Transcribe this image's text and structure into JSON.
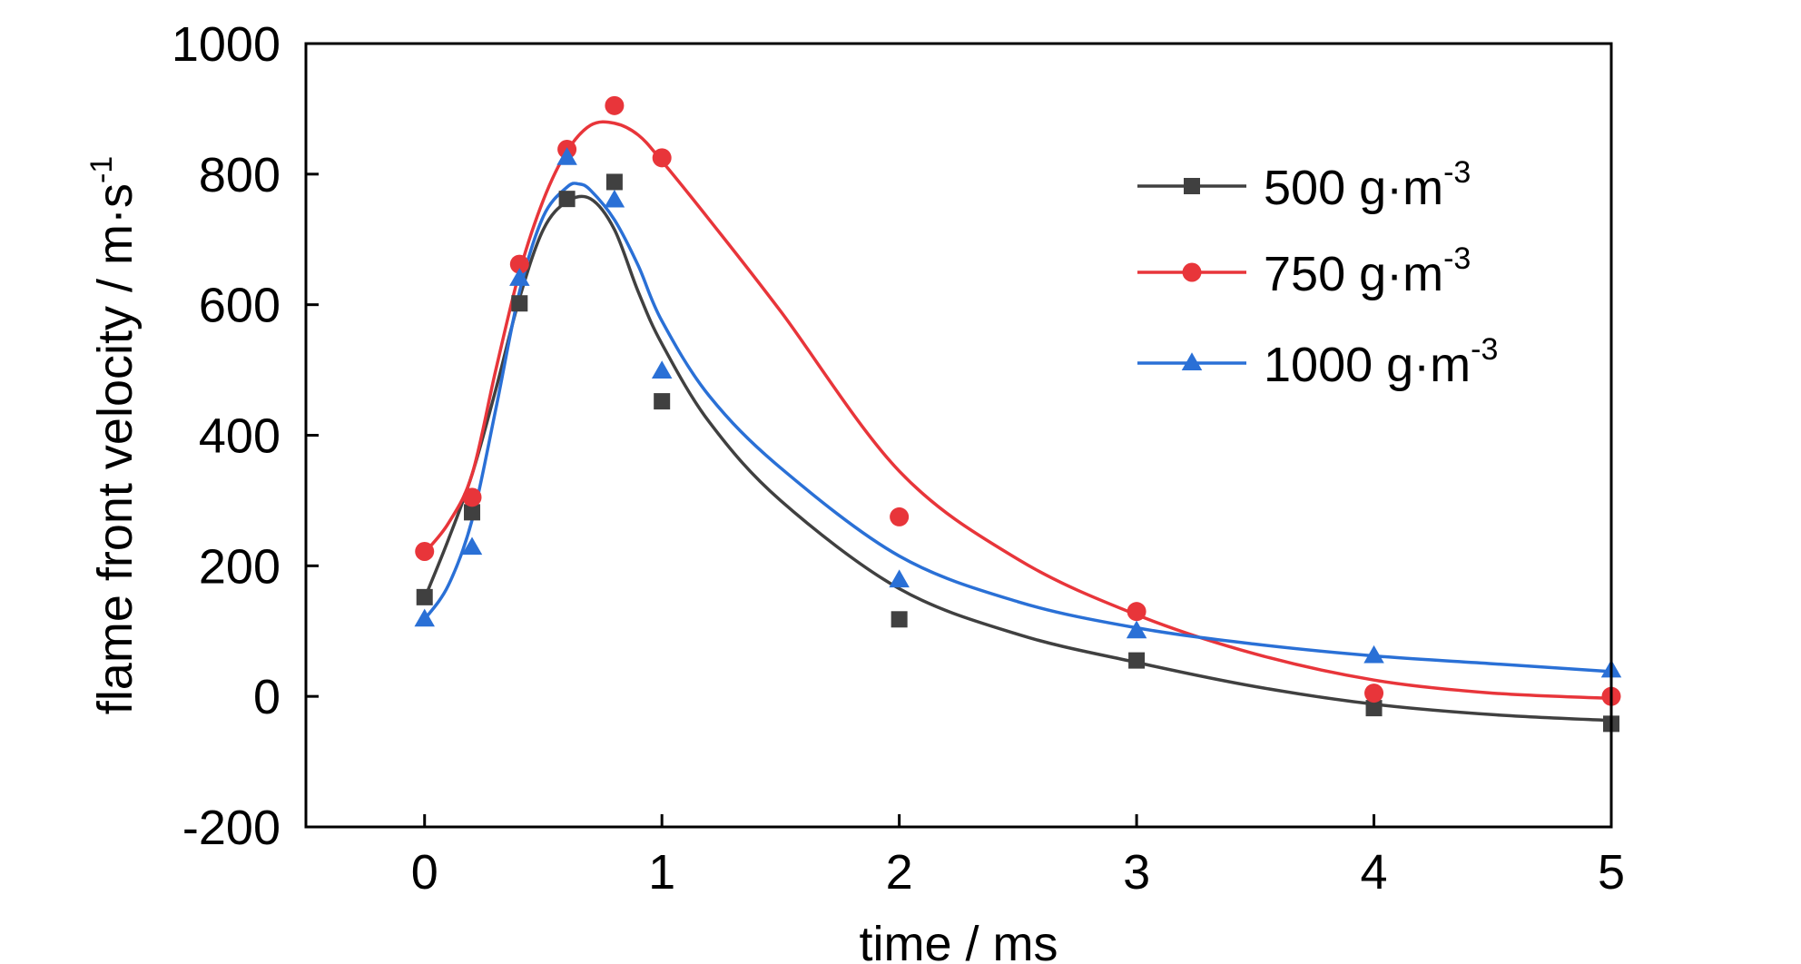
{
  "chart_data": {
    "type": "scatter",
    "xlabel": "time  / ms",
    "ylabel": "flame front velocity / m·s",
    "ylabel_sup": "-1",
    "xlim": [
      -0.5,
      5
    ],
    "ylim": [
      -200,
      1000
    ],
    "xticks": [
      0,
      1,
      2,
      3,
      4,
      5
    ],
    "yticks": [
      -200,
      0,
      200,
      400,
      600,
      800,
      1000
    ],
    "grid": false,
    "legend_position": "top-right",
    "series": [
      {
        "name": "500 g·m",
        "name_sup": "-3",
        "color": "#404040",
        "marker": "square",
        "x": [
          0,
          0.2,
          0.4,
          0.6,
          0.8,
          1,
          2,
          3,
          4,
          5
        ],
        "y": [
          152,
          282,
          602,
          762,
          788,
          452,
          118,
          55,
          -18,
          -42
        ],
        "fit": [
          [
            0,
            150
          ],
          [
            0.1,
            240
          ],
          [
            0.2,
            340
          ],
          [
            0.3,
            470
          ],
          [
            0.4,
            610
          ],
          [
            0.5,
            715
          ],
          [
            0.6,
            758
          ],
          [
            0.7,
            762
          ],
          [
            0.8,
            715
          ],
          [
            0.9,
            620
          ],
          [
            1,
            540
          ],
          [
            1.2,
            420
          ],
          [
            1.5,
            300
          ],
          [
            2,
            165
          ],
          [
            2.5,
            95
          ],
          [
            3,
            52
          ],
          [
            3.5,
            15
          ],
          [
            4,
            -12
          ],
          [
            4.5,
            -28
          ],
          [
            5,
            -37
          ]
        ]
      },
      {
        "name": "750 g·m",
        "name_sup": "-3",
        "color": "#e8353a",
        "marker": "circle",
        "x": [
          0,
          0.2,
          0.4,
          0.6,
          0.8,
          1,
          2,
          3,
          4,
          5
        ],
        "y": [
          222,
          305,
          662,
          838,
          905,
          825,
          275,
          130,
          5,
          0
        ],
        "fit": [
          [
            0,
            220
          ],
          [
            0.1,
            265
          ],
          [
            0.2,
            340
          ],
          [
            0.3,
            500
          ],
          [
            0.4,
            650
          ],
          [
            0.5,
            760
          ],
          [
            0.6,
            835
          ],
          [
            0.7,
            875
          ],
          [
            0.8,
            878
          ],
          [
            0.9,
            860
          ],
          [
            1,
            820
          ],
          [
            1.2,
            730
          ],
          [
            1.5,
            590
          ],
          [
            2,
            345
          ],
          [
            2.5,
            210
          ],
          [
            3,
            125
          ],
          [
            3.5,
            65
          ],
          [
            4,
            25
          ],
          [
            4.5,
            5
          ],
          [
            5,
            -3
          ]
        ]
      },
      {
        "name": "1000 g·m",
        "name_sup": "-3",
        "color": "#2a70d6",
        "marker": "triangle",
        "x": [
          0,
          0.2,
          0.4,
          0.6,
          0.8,
          1,
          2,
          3,
          4,
          5
        ],
        "y": [
          118,
          228,
          640,
          825,
          760,
          498,
          178,
          100,
          62,
          40
        ],
        "fit": [
          [
            0,
            118
          ],
          [
            0.1,
            170
          ],
          [
            0.2,
            270
          ],
          [
            0.3,
            440
          ],
          [
            0.4,
            620
          ],
          [
            0.5,
            735
          ],
          [
            0.6,
            780
          ],
          [
            0.65,
            785
          ],
          [
            0.7,
            775
          ],
          [
            0.8,
            730
          ],
          [
            0.9,
            660
          ],
          [
            1,
            575
          ],
          [
            1.2,
            460
          ],
          [
            1.5,
            350
          ],
          [
            2,
            215
          ],
          [
            2.5,
            145
          ],
          [
            3,
            105
          ],
          [
            3.5,
            80
          ],
          [
            4,
            62
          ],
          [
            4.5,
            50
          ],
          [
            5,
            38
          ]
        ]
      }
    ]
  }
}
